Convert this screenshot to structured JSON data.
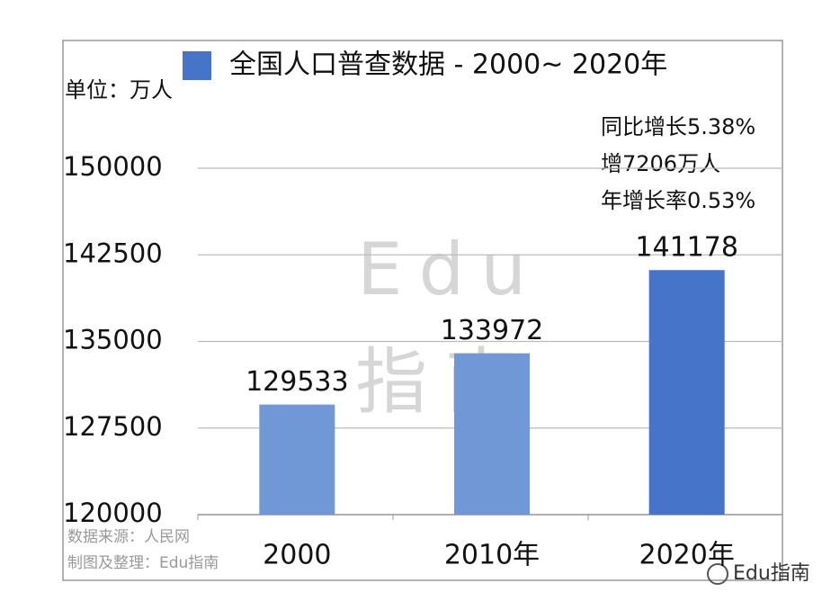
{
  "chart_data": {
    "type": "bar",
    "title": "全国人口普查数据 - 2000~ 2020年",
    "unit_label": "单位：万人",
    "categories": [
      "2000",
      "2010年",
      "2020年"
    ],
    "values": [
      129533,
      133972,
      141178
    ],
    "colors": [
      "#7097d6",
      "#7097d6",
      "#4674c8"
    ],
    "legend_color": "#4674c8",
    "ylim": [
      120000,
      150000
    ],
    "yticks": [
      120000,
      127500,
      135000,
      142500,
      150000
    ],
    "grid": true,
    "annotations": [
      "同比增长5.38%",
      "增7206万人",
      "年增长率0.53%"
    ],
    "source": [
      "数据来源：人民网",
      "制图及整理：Edu指南"
    ],
    "watermark": [
      "Edu",
      "指南"
    ],
    "brand": "Edu指南"
  }
}
